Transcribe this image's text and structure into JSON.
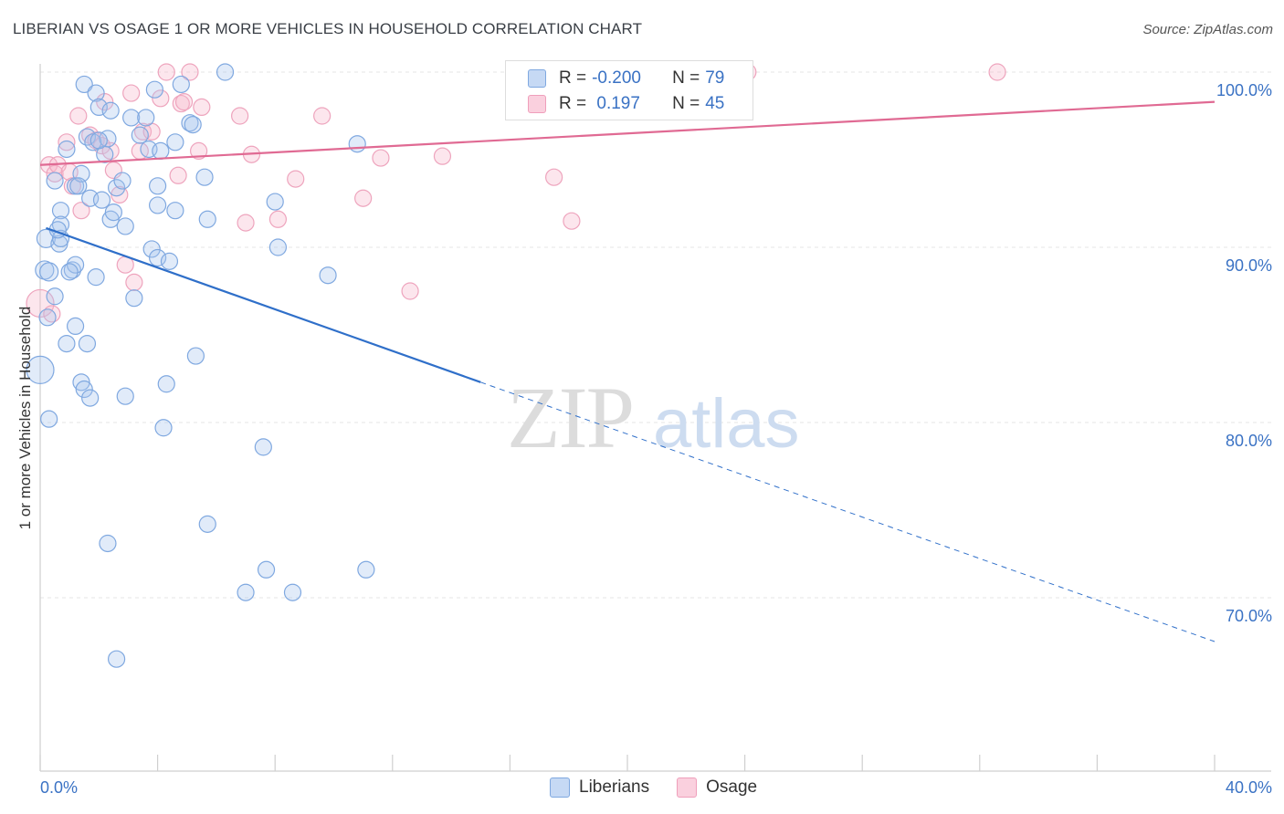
{
  "header": {
    "title": "LIBERIAN VS OSAGE 1 OR MORE VEHICLES IN HOUSEHOLD CORRELATION CHART",
    "source": "Source: ZipAtlas.com"
  },
  "watermark": {
    "zip": "ZIP",
    "atlas": "atlas"
  },
  "legend_top": {
    "rows": [
      {
        "r_label": "R =",
        "r_value": "-0.200",
        "n_label": "N =",
        "n_value": "79"
      },
      {
        "r_label": "R =",
        "r_value": " 0.197",
        "n_label": "N =",
        "n_value": "45"
      }
    ]
  },
  "legend_bottom": {
    "items": [
      "Liberians",
      "Osage"
    ]
  },
  "chart_data": {
    "type": "scatter",
    "title": "LIBERIAN VS OSAGE 1 OR MORE VEHICLES IN HOUSEHOLD CORRELATION CHART",
    "xlabel": "",
    "ylabel": "1 or more Vehicles in Household",
    "xlim": [
      0,
      40
    ],
    "ylim": [
      60,
      101.5
    ],
    "x_tick_labels": [
      "0.0%",
      "40.0%"
    ],
    "y_tick_labels": [
      "70.0%",
      "80.0%",
      "90.0%",
      "100.0%"
    ],
    "y_ticks": [
      70,
      80,
      90,
      100
    ],
    "grid": true,
    "legend_position": "top-center",
    "colors": {
      "liberians": "#a9c6ee",
      "liberians_line": "#2f6fc9",
      "osage": "#f5b8cc",
      "osage_line": "#e06a93",
      "axis_text": "#3a72c4"
    },
    "series": [
      {
        "name": "Liberians",
        "r": -0.2,
        "n": 79,
        "trend": {
          "x0": 0.2,
          "y0": 91.1,
          "x1": 15.0,
          "y1": 82.3,
          "x_dash_end": 40.0,
          "y_dash_end": 67.5
        },
        "points": [
          [
            0.0,
            83.0,
            15
          ],
          [
            0.2,
            90.5,
            10
          ],
          [
            0.15,
            88.7,
            10
          ],
          [
            0.3,
            88.6,
            10
          ],
          [
            0.25,
            86.0,
            9
          ],
          [
            0.5,
            87.2,
            9
          ],
          [
            0.3,
            80.2,
            9
          ],
          [
            0.5,
            93.8,
            9
          ],
          [
            0.7,
            92.1,
            9
          ],
          [
            0.7,
            91.3,
            9
          ],
          [
            0.65,
            90.2,
            9
          ],
          [
            0.7,
            90.5,
            9
          ],
          [
            0.9,
            95.6,
            9
          ],
          [
            1.2,
            93.5,
            9
          ],
          [
            1.4,
            94.2,
            9
          ],
          [
            1.6,
            96.3,
            9
          ],
          [
            1.5,
            99.3,
            9
          ],
          [
            1.9,
            98.8,
            9
          ],
          [
            2.0,
            98.0,
            9
          ],
          [
            2.4,
            97.8,
            9
          ],
          [
            1.8,
            96.0,
            9
          ],
          [
            2.2,
            95.3,
            9
          ],
          [
            2.3,
            96.2,
            9
          ],
          [
            1.7,
            92.8,
            9
          ],
          [
            2.1,
            92.7,
            9
          ],
          [
            2.4,
            91.6,
            9
          ],
          [
            2.5,
            92.0,
            9
          ],
          [
            2.6,
            93.4,
            9
          ],
          [
            2.8,
            93.8,
            9
          ],
          [
            2.9,
            91.2,
            9
          ],
          [
            3.1,
            97.4,
            9
          ],
          [
            3.6,
            97.4,
            9
          ],
          [
            3.4,
            96.4,
            9
          ],
          [
            3.9,
            99.0,
            9
          ],
          [
            3.7,
            95.6,
            9
          ],
          [
            4.0,
            93.5,
            9
          ],
          [
            4.0,
            92.4,
            9
          ],
          [
            4.6,
            92.1,
            9
          ],
          [
            4.6,
            96.0,
            9
          ],
          [
            4.8,
            99.3,
            9
          ],
          [
            5.1,
            97.1,
            9
          ],
          [
            5.2,
            97.0,
            9
          ],
          [
            5.6,
            94.0,
            9
          ],
          [
            5.7,
            91.6,
            9
          ],
          [
            6.3,
            100.0,
            9
          ],
          [
            3.8,
            89.9,
            9
          ],
          [
            4.0,
            89.4,
            9
          ],
          [
            4.4,
            89.2,
            9
          ],
          [
            3.2,
            87.1,
            9
          ],
          [
            1.9,
            88.3,
            9
          ],
          [
            1.1,
            88.7,
            9
          ],
          [
            1.2,
            89.0,
            9
          ],
          [
            1.0,
            88.6,
            9
          ],
          [
            1.2,
            85.5,
            9
          ],
          [
            0.9,
            84.5,
            9
          ],
          [
            1.6,
            84.5,
            9
          ],
          [
            5.3,
            83.8,
            9
          ],
          [
            1.4,
            82.3,
            9
          ],
          [
            1.5,
            81.9,
            9
          ],
          [
            1.7,
            81.4,
            9
          ],
          [
            2.9,
            81.5,
            9
          ],
          [
            4.3,
            82.2,
            9
          ],
          [
            4.2,
            79.7,
            9
          ],
          [
            7.6,
            78.6,
            9
          ],
          [
            8.0,
            92.6,
            9
          ],
          [
            8.1,
            90.0,
            9
          ],
          [
            9.8,
            88.4,
            9
          ],
          [
            10.8,
            95.9,
            9
          ],
          [
            5.7,
            74.2,
            9
          ],
          [
            2.3,
            73.1,
            9
          ],
          [
            7.0,
            70.3,
            9
          ],
          [
            7.7,
            71.6,
            9
          ],
          [
            8.6,
            70.3,
            9
          ],
          [
            11.1,
            71.6,
            9
          ],
          [
            2.6,
            66.5,
            9
          ],
          [
            1.3,
            93.5,
            9
          ],
          [
            0.6,
            91.0,
            9
          ],
          [
            2.0,
            96.1,
            9
          ],
          [
            4.1,
            95.5,
            9
          ]
        ]
      },
      {
        "name": "Osage",
        "r": 0.197,
        "n": 45,
        "trend": {
          "x0": 0.0,
          "y0": 94.7,
          "x1": 40.0,
          "y1": 98.3
        },
        "points": [
          [
            0.0,
            86.8,
            15
          ],
          [
            0.3,
            94.7,
            9
          ],
          [
            0.5,
            94.2,
            9
          ],
          [
            0.6,
            94.7,
            9
          ],
          [
            0.9,
            96.0,
            9
          ],
          [
            1.0,
            94.3,
            9
          ],
          [
            1.1,
            93.5,
            9
          ],
          [
            1.3,
            97.5,
            9
          ],
          [
            1.4,
            92.1,
            9
          ],
          [
            1.7,
            96.4,
            9
          ],
          [
            1.9,
            96.1,
            9
          ],
          [
            2.1,
            95.8,
            9
          ],
          [
            2.2,
            98.3,
            9
          ],
          [
            2.4,
            95.5,
            9
          ],
          [
            2.5,
            94.4,
            9
          ],
          [
            2.7,
            93.0,
            9
          ],
          [
            2.9,
            89.0,
            9
          ],
          [
            3.1,
            98.8,
            9
          ],
          [
            3.2,
            88.0,
            9
          ],
          [
            3.4,
            95.5,
            9
          ],
          [
            3.5,
            96.6,
            9
          ],
          [
            3.8,
            96.6,
            9
          ],
          [
            4.1,
            98.5,
            9
          ],
          [
            4.3,
            100.0,
            9
          ],
          [
            4.7,
            94.1,
            9
          ],
          [
            4.8,
            98.2,
            9
          ],
          [
            5.1,
            100.0,
            9
          ],
          [
            5.4,
            95.5,
            9
          ],
          [
            5.5,
            98.0,
            9
          ],
          [
            6.8,
            97.5,
            9
          ],
          [
            7.0,
            91.4,
            9
          ],
          [
            7.2,
            95.3,
            9
          ],
          [
            8.1,
            91.6,
            9
          ],
          [
            8.7,
            93.9,
            9
          ],
          [
            9.6,
            97.5,
            9
          ],
          [
            11.0,
            92.8,
            9
          ],
          [
            11.6,
            95.1,
            9
          ],
          [
            12.6,
            87.5,
            9
          ],
          [
            13.7,
            95.2,
            9
          ],
          [
            17.5,
            94.0,
            9
          ],
          [
            18.1,
            91.5,
            9
          ],
          [
            24.1,
            100.0,
            9
          ],
          [
            32.6,
            100.0,
            9
          ],
          [
            0.4,
            86.2,
            9
          ],
          [
            4.9,
            98.3,
            9
          ]
        ]
      }
    ]
  }
}
